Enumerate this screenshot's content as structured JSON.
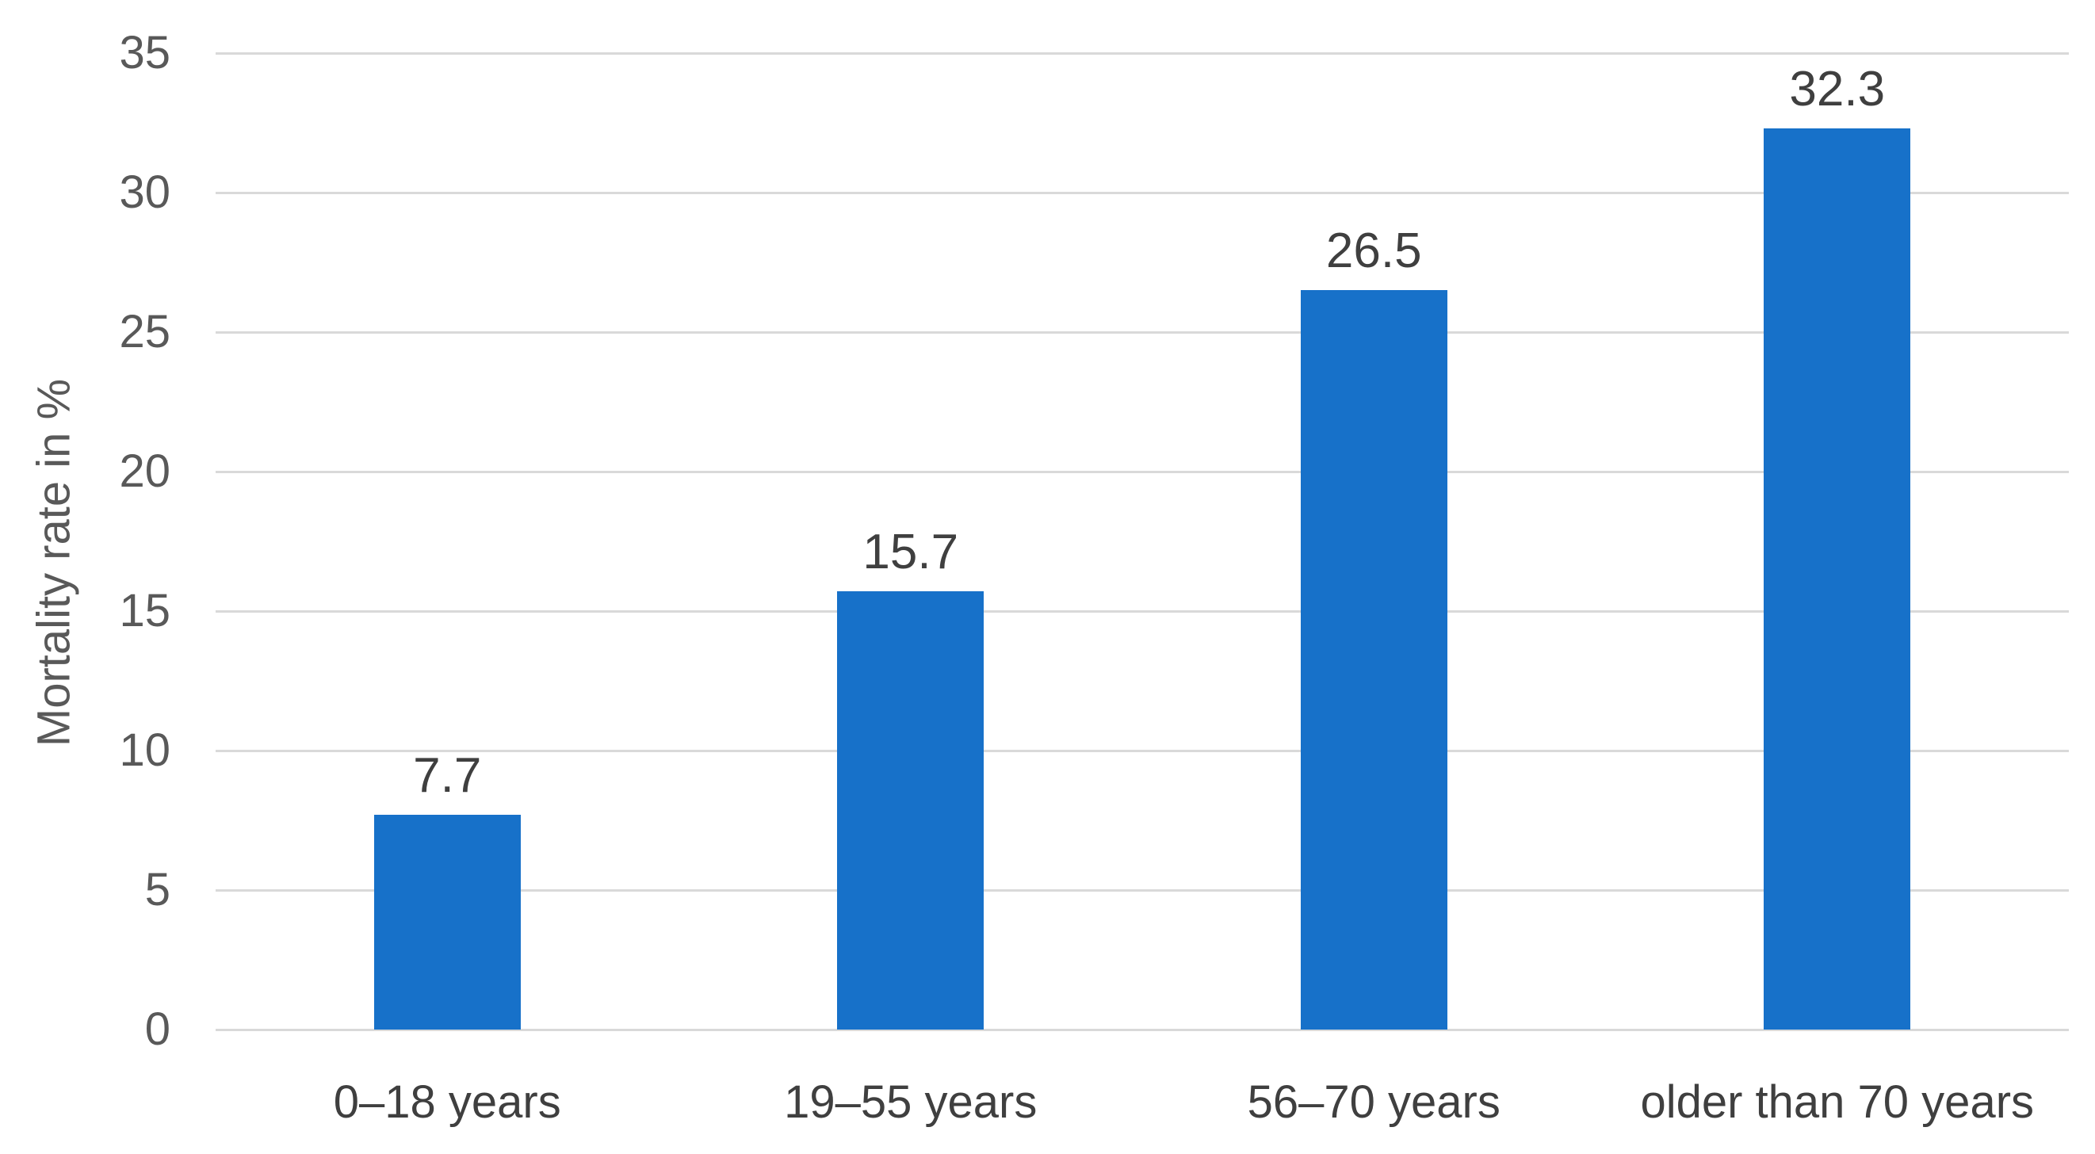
{
  "chart_data": {
    "type": "bar",
    "title": "",
    "xlabel": "",
    "ylabel": "Mortality rate in %",
    "categories": [
      "0–18 years",
      "19–55 years",
      "56–70 years",
      "older than 70 years"
    ],
    "values": [
      7.7,
      15.7,
      26.5,
      32.3
    ],
    "data_labels": [
      "7.7",
      "15.7",
      "26.5",
      "32.3"
    ],
    "yticks": [
      "0",
      "5",
      "10",
      "15",
      "20",
      "25",
      "30",
      "35"
    ],
    "ylim": [
      0,
      35
    ],
    "ytick_step": 5,
    "grid": true,
    "legend": false,
    "colors": {
      "bar": "#1771c9",
      "gridline": "#d9d9d9",
      "y_tick_label": "#595959",
      "data_label": "#3f3f3f",
      "x_tick_label": "#3f3f3f",
      "background": "#ffffff"
    }
  }
}
